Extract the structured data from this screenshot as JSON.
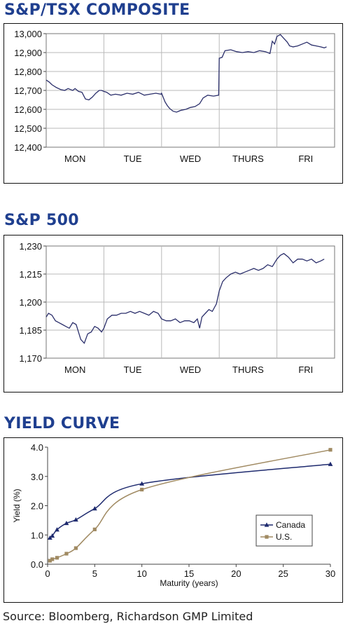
{
  "colors": {
    "title": "#1f3f8f",
    "line": "#2b2f6b",
    "canada": "#1e2a6e",
    "us": "#a08a62",
    "grid": "#b9b9b9"
  },
  "footer": {
    "source": "Source: Bloomberg, Richardson GMP Limited"
  },
  "chart_data": [
    {
      "type": "line",
      "title": "S&P/TSX COMPOSITE",
      "categories": [
        "MON",
        "TUE",
        "WED",
        "THURS",
        "FRI"
      ],
      "ylim": [
        12400,
        13000
      ],
      "yticks": [
        12400,
        12500,
        12600,
        12700,
        12800,
        12900,
        13000
      ],
      "ytick_labels": [
        "12,400",
        "12,500",
        "12,600",
        "12,700",
        "12,800",
        "12,900",
        "13,000"
      ],
      "grid": true,
      "series": [
        {
          "x": [
            0.0,
            0.05,
            0.1,
            0.18,
            0.25,
            0.32,
            0.38,
            0.42,
            0.46,
            0.5,
            0.56,
            0.62,
            0.68,
            0.74,
            0.8,
            0.86,
            0.92,
            0.96,
            1.0,
            1.05,
            1.12,
            1.2,
            1.3,
            1.4,
            1.5,
            1.6,
            1.7,
            1.8,
            1.9,
            1.99,
            2.0,
            2.06,
            2.1,
            2.14,
            2.2,
            2.26,
            2.34,
            2.42,
            2.5,
            2.58,
            2.66,
            2.72,
            2.8,
            2.9,
            2.99,
            3.0,
            3.05,
            3.1,
            3.2,
            3.3,
            3.4,
            3.5,
            3.6,
            3.7,
            3.8,
            3.88,
            3.92,
            3.96,
            4.0,
            4.06,
            4.12,
            4.18,
            4.22,
            4.28,
            4.36,
            4.44,
            4.52,
            4.6,
            4.68,
            4.76,
            4.82,
            4.86
          ],
          "values": [
            12755,
            12745,
            12730,
            12715,
            12705,
            12700,
            12710,
            12705,
            12700,
            12710,
            12695,
            12690,
            12655,
            12650,
            12665,
            12685,
            12700,
            12700,
            12695,
            12690,
            12675,
            12680,
            12675,
            12685,
            12680,
            12690,
            12675,
            12680,
            12685,
            12680,
            12685,
            12640,
            12620,
            12605,
            12590,
            12585,
            12595,
            12600,
            12610,
            12615,
            12630,
            12660,
            12675,
            12670,
            12675,
            12870,
            12875,
            12910,
            12915,
            12905,
            12900,
            12905,
            12900,
            12910,
            12905,
            12895,
            12960,
            12945,
            12985,
            12995,
            12975,
            12955,
            12935,
            12930,
            12935,
            12945,
            12955,
            12940,
            12935,
            12930,
            12925,
            12930
          ]
        }
      ]
    },
    {
      "type": "line",
      "title": "S&P 500",
      "categories": [
        "MON",
        "TUE",
        "WED",
        "THURS",
        "FRI"
      ],
      "ylim": [
        1170,
        1230
      ],
      "yticks": [
        1170,
        1185,
        1200,
        1215,
        1230
      ],
      "ytick_labels": [
        "1,170",
        "1,185",
        "1,200",
        "1,215",
        "1,230"
      ],
      "grid": true,
      "series": [
        {
          "x": [
            0.0,
            0.04,
            0.1,
            0.16,
            0.22,
            0.28,
            0.34,
            0.4,
            0.46,
            0.52,
            0.56,
            0.6,
            0.66,
            0.72,
            0.78,
            0.84,
            0.9,
            0.96,
            1.0,
            1.06,
            1.14,
            1.22,
            1.3,
            1.38,
            1.46,
            1.54,
            1.62,
            1.7,
            1.78,
            1.86,
            1.94,
            2.0,
            2.08,
            2.16,
            2.24,
            2.32,
            2.4,
            2.48,
            2.56,
            2.62,
            2.66,
            2.7,
            2.76,
            2.82,
            2.88,
            2.95,
            3.0,
            3.06,
            3.12,
            3.2,
            3.28,
            3.36,
            3.44,
            3.52,
            3.6,
            3.68,
            3.76,
            3.84,
            3.92,
            4.0,
            4.06,
            4.12,
            4.2,
            4.28,
            4.36,
            4.44,
            4.52,
            4.6,
            4.68,
            4.76,
            4.82
          ],
          "values": [
            1192,
            1194,
            1193,
            1190,
            1189,
            1188,
            1187,
            1186,
            1189,
            1188,
            1184,
            1180,
            1178,
            1183,
            1184,
            1187,
            1186,
            1184,
            1186,
            1191,
            1193,
            1193,
            1194,
            1194,
            1195,
            1194,
            1195,
            1194,
            1193,
            1195,
            1194,
            1191,
            1190,
            1190,
            1191,
            1189,
            1190,
            1190,
            1189,
            1191,
            1186,
            1192,
            1194,
            1196,
            1195,
            1199,
            1206,
            1211,
            1213,
            1215,
            1216,
            1215,
            1216,
            1217,
            1218,
            1217,
            1218,
            1220,
            1219,
            1223,
            1225,
            1226,
            1224,
            1221,
            1223,
            1223,
            1222,
            1223,
            1221,
            1222,
            1223
          ]
        }
      ]
    },
    {
      "type": "line",
      "title": "YIELD CURVE",
      "xlabel": "Maturity (years)",
      "ylabel": "Yield (%)",
      "xlim": [
        0,
        30
      ],
      "ylim": [
        0,
        4
      ],
      "xticks": [
        0,
        5,
        10,
        15,
        20,
        25,
        30
      ],
      "yticks": [
        0.0,
        1.0,
        2.0,
        3.0,
        4.0
      ],
      "ytick_labels": [
        "0.0",
        "1.0",
        "2.0",
        "3.0",
        "4.0"
      ],
      "grid": false,
      "legend": "bottom-right",
      "series": [
        {
          "name": "Canada",
          "marker": "triangle",
          "x": [
            0.25,
            0.5,
            1,
            2,
            3,
            5,
            10,
            30
          ],
          "values": [
            0.9,
            0.97,
            1.18,
            1.4,
            1.52,
            1.9,
            2.75,
            3.42
          ]
        },
        {
          "name": "U.S.",
          "marker": "square",
          "x": [
            0.25,
            0.5,
            1,
            2,
            3,
            5,
            10,
            30
          ],
          "values": [
            0.12,
            0.17,
            0.22,
            0.36,
            0.55,
            1.19,
            2.55,
            3.91
          ]
        }
      ]
    }
  ]
}
